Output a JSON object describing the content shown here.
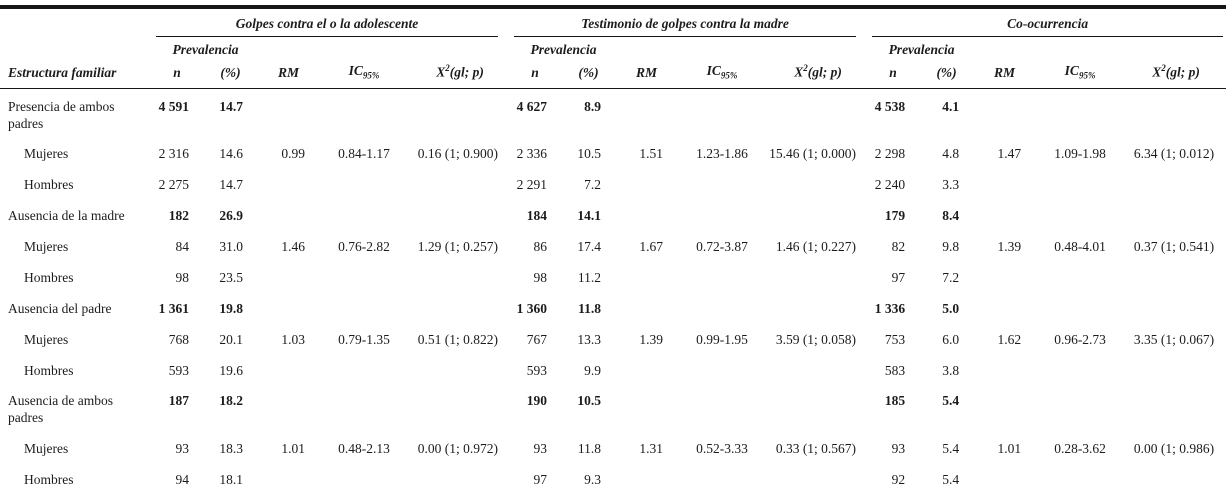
{
  "table": {
    "row_header": "Estructura familiar",
    "groups": [
      {
        "title": "Golpes contra el o la adolescente"
      },
      {
        "title": "Testimonio de golpes contra la madre"
      },
      {
        "title": "Co-ocurrencia"
      }
    ],
    "columns": {
      "prevalencia": "Prevalencia",
      "n": "n",
      "pct": "(%)",
      "rm": "RM",
      "ic_base": "IC",
      "ic_sub": "95%",
      "x2_base": "X",
      "x2_sup": "2",
      "x2_tail": "(gl; p)"
    },
    "rows": [
      {
        "label": "Presencia de ambos padres",
        "category": true,
        "cells": [
          "4 591",
          "14.7",
          "",
          "",
          "",
          "4 627",
          "8.9",
          "",
          "",
          "",
          "4 538",
          "4.1",
          "",
          "",
          ""
        ]
      },
      {
        "label": "Mujeres",
        "category": false,
        "cells": [
          "2 316",
          "14.6",
          "0.99",
          "0.84-1.17",
          "0.16 (1; 0.900)",
          "2 336",
          "10.5",
          "1.51",
          "1.23-1.86",
          "15.46 (1; 0.000)",
          "2 298",
          "4.8",
          "1.47",
          "1.09-1.98",
          "6.34 (1; 0.012)"
        ]
      },
      {
        "label": "Hombres",
        "category": false,
        "cells": [
          "2 275",
          "14.7",
          "",
          "",
          "",
          "2 291",
          "7.2",
          "",
          "",
          "",
          "2 240",
          "3.3",
          "",
          "",
          ""
        ]
      },
      {
        "label": "Ausencia de la madre",
        "category": true,
        "cells": [
          "182",
          "26.9",
          "",
          "",
          "",
          "184",
          "14.1",
          "",
          "",
          "",
          "179",
          "8.4",
          "",
          "",
          ""
        ]
      },
      {
        "label": "Mujeres",
        "category": false,
        "cells": [
          "84",
          "31.0",
          "1.46",
          "0.76-2.82",
          "1.29 (1; 0.257)",
          "86",
          "17.4",
          "1.67",
          "0.72-3.87",
          "1.46 (1; 0.227)",
          "82",
          "9.8",
          "1.39",
          "0.48-4.01",
          "0.37 (1; 0.541)"
        ]
      },
      {
        "label": "Hombres",
        "category": false,
        "cells": [
          "98",
          "23.5",
          "",
          "",
          "",
          "98",
          "11.2",
          "",
          "",
          "",
          "97",
          "7.2",
          "",
          "",
          ""
        ]
      },
      {
        "label": "Ausencia del padre",
        "category": true,
        "cells": [
          "1 361",
          "19.8",
          "",
          "",
          "",
          "1 360",
          "11.8",
          "",
          "",
          "",
          "1 336",
          "5.0",
          "",
          "",
          ""
        ]
      },
      {
        "label": "Mujeres",
        "category": false,
        "cells": [
          "768",
          "20.1",
          "1.03",
          "0.79-1.35",
          "0.51 (1; 0.822)",
          "767",
          "13.3",
          "1.39",
          "0.99-1.95",
          "3.59 (1; 0.058)",
          "753",
          "6.0",
          "1.62",
          "0.96-2.73",
          "3.35 (1; 0.067)"
        ]
      },
      {
        "label": "Hombres",
        "category": false,
        "cells": [
          "593",
          "19.6",
          "",
          "",
          "",
          "593",
          "9.9",
          "",
          "",
          "",
          "583",
          "3.8",
          "",
          "",
          ""
        ]
      },
      {
        "label": "Ausencia de ambos padres",
        "category": true,
        "cells": [
          "187",
          "18.2",
          "",
          "",
          "",
          "190",
          "10.5",
          "",
          "",
          "",
          "185",
          "5.4",
          "",
          "",
          ""
        ]
      },
      {
        "label": "Mujeres",
        "category": false,
        "cells": [
          "93",
          "18.3",
          "1.01",
          "0.48-2.13",
          "0.00 (1; 0.972)",
          "93",
          "11.8",
          "1.31",
          "0.52-3.33",
          "0.33 (1; 0.567)",
          "93",
          "5.4",
          "1.01",
          "0.28-3.62",
          "0.00 (1; 0.986)"
        ]
      },
      {
        "label": "Hombres",
        "category": false,
        "cells": [
          "94",
          "18.1",
          "",
          "",
          "",
          "97",
          "9.3",
          "",
          "",
          "",
          "92",
          "5.4",
          "",
          "",
          ""
        ]
      }
    ]
  }
}
